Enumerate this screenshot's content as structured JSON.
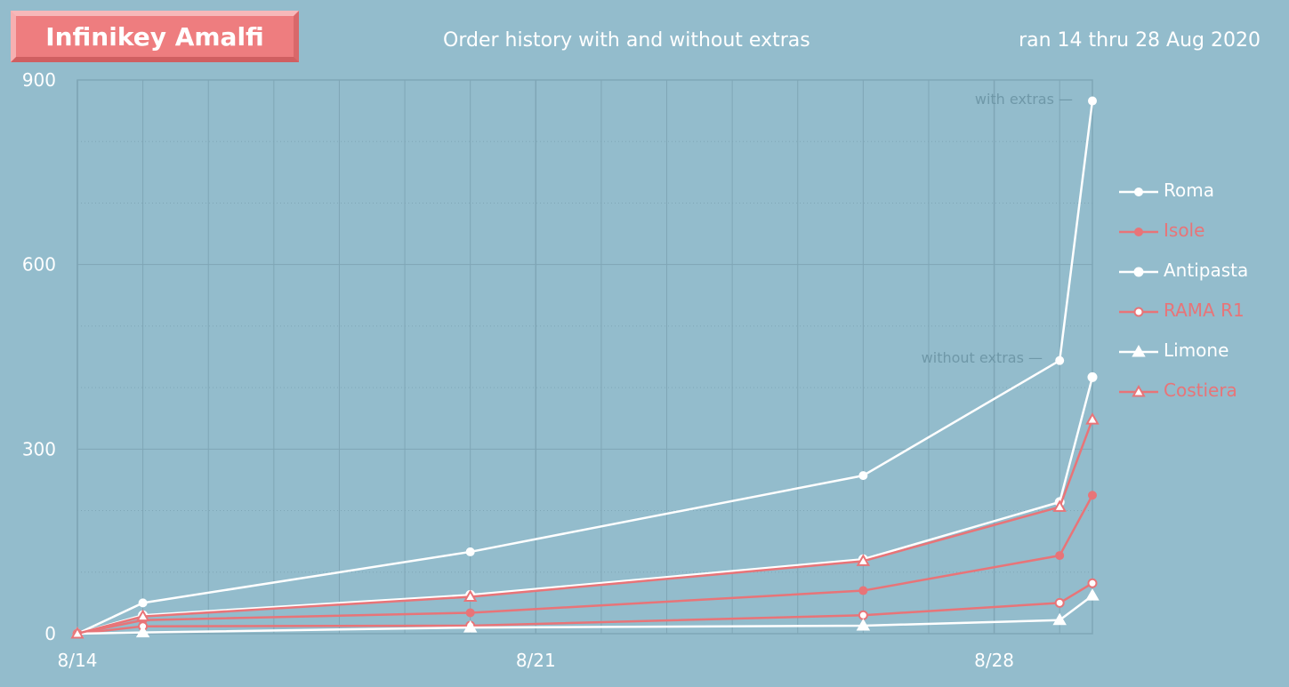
{
  "header": {
    "brand": "Infinikey Amalfi",
    "title": "Order history with and without extras",
    "daterange": "ran 14 thru 28 Aug 2020"
  },
  "colors": {
    "background": "#93bccc",
    "white": "#ffffff",
    "coral": "#e87478",
    "grid": "#7fa6b6"
  },
  "chart_data": {
    "type": "line",
    "title": "Order history with and without extras",
    "x": [
      0,
      1,
      6,
      12,
      15,
      15.5
    ],
    "x_ticks": [
      {
        "value": 0,
        "label": "8/14"
      },
      {
        "value": 7,
        "label": "8/21"
      },
      {
        "value": 14,
        "label": "8/28"
      }
    ],
    "xlim": [
      0,
      15.5
    ],
    "ylim": [
      0,
      900
    ],
    "y_ticks": [
      0,
      300,
      600,
      900
    ],
    "grid": true,
    "series": [
      {
        "name": "Roma",
        "color": "#ffffff",
        "marker": "filled-circle",
        "values": [
          0,
          50,
          133,
          257,
          444,
          866
        ]
      },
      {
        "name": "Isole",
        "color": "#e87478",
        "marker": "filled-circle",
        "values": [
          0,
          22,
          34,
          70,
          127,
          225
        ]
      },
      {
        "name": "Antipasta",
        "color": "#ffffff",
        "marker": "hollow-circle",
        "values": [
          0,
          30,
          63,
          121,
          214,
          417
        ]
      },
      {
        "name": "RAMA R1",
        "color": "#e87478",
        "marker": "hollow-circle",
        "values": [
          0,
          12,
          13,
          30,
          50,
          82
        ]
      },
      {
        "name": "Limone",
        "color": "#ffffff",
        "marker": "hollow-triangle",
        "values": [
          0,
          2,
          10,
          13,
          22,
          62
        ]
      },
      {
        "name": "Costiera",
        "color": "#e87478",
        "marker": "hollow-triangle",
        "values": [
          0,
          28,
          60,
          118,
          206,
          348
        ]
      }
    ],
    "annotations": [
      {
        "text": "with extras —",
        "near": "Roma at 8/29"
      },
      {
        "text": "without extras —",
        "near": "Roma at 8/28"
      }
    ],
    "legend_position": "right"
  }
}
